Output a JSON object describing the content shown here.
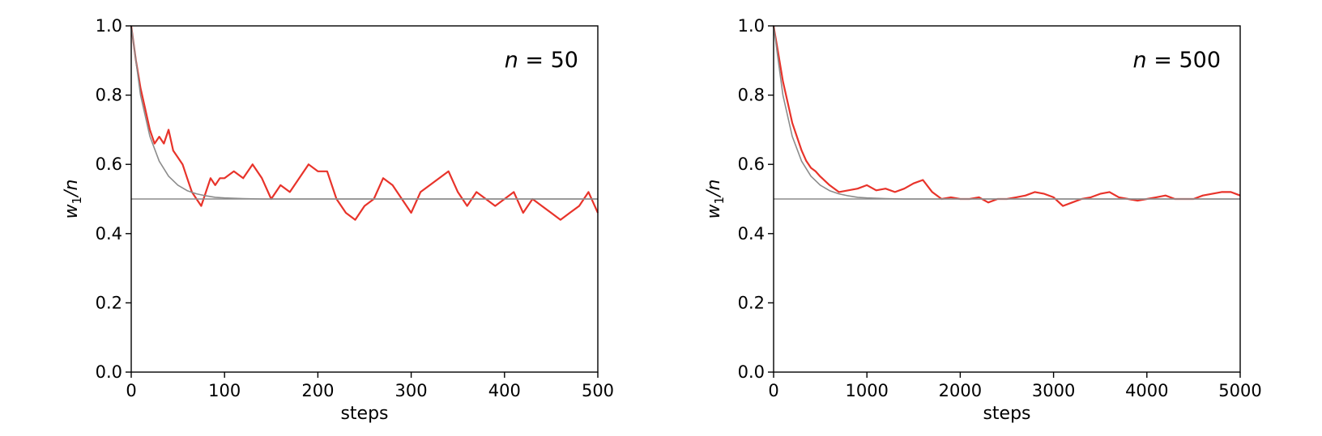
{
  "chart_data": [
    {
      "type": "line",
      "annotation_var": "n",
      "annotation_eq": " = 50",
      "xlabel": "steps",
      "ylabel_main": "w",
      "ylabel_sub": "1",
      "ylabel_rest": "/n",
      "xlim": [
        0,
        500
      ],
      "ylim": [
        0.0,
        1.0
      ],
      "xticks": [
        0,
        100,
        200,
        300,
        400,
        500
      ],
      "yticks": [
        0.0,
        0.2,
        0.4,
        0.6,
        0.8,
        1.0
      ],
      "xtick_labels": [
        "0",
        "100",
        "200",
        "300",
        "400",
        "500"
      ],
      "ytick_labels": [
        "0.0",
        "0.2",
        "0.4",
        "0.6",
        "0.8",
        "1.0"
      ],
      "grid": false,
      "colors": {
        "simulation": "#e8332a",
        "theory": "#8c8c8c",
        "reference": "#8c8c8c"
      },
      "series": [
        {
          "style": "simulation",
          "x": [
            0,
            5,
            10,
            15,
            20,
            25,
            30,
            35,
            40,
            45,
            50,
            55,
            60,
            65,
            70,
            75,
            80,
            85,
            90,
            95,
            100,
            110,
            120,
            130,
            140,
            150,
            160,
            170,
            180,
            190,
            200,
            210,
            220,
            230,
            240,
            250,
            260,
            270,
            280,
            290,
            300,
            310,
            320,
            330,
            340,
            350,
            360,
            370,
            380,
            390,
            400,
            410,
            420,
            430,
            440,
            450,
            460,
            470,
            480,
            490,
            500
          ],
          "y": [
            1.0,
            0.9,
            0.82,
            0.76,
            0.7,
            0.66,
            0.68,
            0.66,
            0.7,
            0.64,
            0.62,
            0.6,
            0.56,
            0.52,
            0.5,
            0.48,
            0.52,
            0.56,
            0.54,
            0.56,
            0.56,
            0.58,
            0.56,
            0.6,
            0.56,
            0.5,
            0.54,
            0.52,
            0.56,
            0.6,
            0.58,
            0.58,
            0.5,
            0.46,
            0.44,
            0.48,
            0.5,
            0.56,
            0.54,
            0.5,
            0.46,
            0.52,
            0.54,
            0.56,
            0.58,
            0.52,
            0.48,
            0.52,
            0.5,
            0.48,
            0.5,
            0.52,
            0.46,
            0.5,
            0.48,
            0.46,
            0.44,
            0.46,
            0.48,
            0.52,
            0.46
          ]
        },
        {
          "style": "theory",
          "x": [
            0,
            10,
            20,
            30,
            40,
            50,
            60,
            70,
            80,
            90,
            100,
            120,
            140,
            160,
            180,
            200,
            250,
            300,
            350,
            400,
            450,
            500
          ],
          "y": [
            1.0,
            0.8,
            0.681,
            0.609,
            0.566,
            0.54,
            0.524,
            0.515,
            0.509,
            0.505,
            0.503,
            0.501,
            0.5,
            0.5,
            0.5,
            0.5,
            0.5,
            0.5,
            0.5,
            0.5,
            0.5,
            0.5
          ]
        },
        {
          "style": "reference",
          "x": [
            0,
            500
          ],
          "y": [
            0.5,
            0.5
          ]
        }
      ]
    },
    {
      "type": "line",
      "annotation_var": "n",
      "annotation_eq": " = 500",
      "xlabel": "steps",
      "ylabel_main": "w",
      "ylabel_sub": "1",
      "ylabel_rest": "/n",
      "xlim": [
        0,
        5000
      ],
      "ylim": [
        0.0,
        1.0
      ],
      "xticks": [
        0,
        1000,
        2000,
        3000,
        4000,
        5000
      ],
      "yticks": [
        0.0,
        0.2,
        0.4,
        0.6,
        0.8,
        1.0
      ],
      "xtick_labels": [
        "0",
        "1000",
        "2000",
        "3000",
        "4000",
        "5000"
      ],
      "ytick_labels": [
        "0.0",
        "0.2",
        "0.4",
        "0.6",
        "0.8",
        "1.0"
      ],
      "grid": false,
      "colors": {
        "simulation": "#e8332a",
        "theory": "#8c8c8c",
        "reference": "#8c8c8c"
      },
      "series": [
        {
          "style": "simulation",
          "x": [
            0,
            50,
            100,
            150,
            200,
            250,
            300,
            350,
            400,
            450,
            500,
            600,
            700,
            800,
            900,
            1000,
            1100,
            1200,
            1300,
            1400,
            1500,
            1600,
            1700,
            1800,
            1900,
            2000,
            2100,
            2200,
            2300,
            2400,
            2500,
            2600,
            2700,
            2800,
            2900,
            3000,
            3100,
            3200,
            3300,
            3400,
            3500,
            3600,
            3700,
            3800,
            3900,
            4000,
            4100,
            4200,
            4300,
            4400,
            4500,
            4600,
            4700,
            4800,
            4900,
            5000
          ],
          "y": [
            1.0,
            0.92,
            0.84,
            0.78,
            0.72,
            0.68,
            0.64,
            0.61,
            0.59,
            0.58,
            0.565,
            0.54,
            0.52,
            0.525,
            0.53,
            0.54,
            0.525,
            0.53,
            0.52,
            0.53,
            0.545,
            0.555,
            0.52,
            0.5,
            0.505,
            0.5,
            0.5,
            0.505,
            0.49,
            0.5,
            0.5,
            0.505,
            0.51,
            0.52,
            0.515,
            0.505,
            0.48,
            0.49,
            0.5,
            0.505,
            0.515,
            0.52,
            0.505,
            0.5,
            0.495,
            0.5,
            0.505,
            0.51,
            0.5,
            0.5,
            0.5,
            0.51,
            0.515,
            0.52,
            0.52,
            0.51
          ]
        },
        {
          "style": "theory",
          "x": [
            0,
            100,
            200,
            300,
            400,
            500,
            600,
            700,
            800,
            900,
            1000,
            1200,
            1400,
            1600,
            1800,
            2000,
            2500,
            3000,
            3500,
            4000,
            4500,
            5000
          ],
          "y": [
            1.0,
            0.8,
            0.681,
            0.609,
            0.566,
            0.54,
            0.524,
            0.515,
            0.509,
            0.505,
            0.503,
            0.501,
            0.5,
            0.5,
            0.5,
            0.5,
            0.5,
            0.5,
            0.5,
            0.5,
            0.5,
            0.5
          ]
        },
        {
          "style": "reference",
          "x": [
            0,
            5000
          ],
          "y": [
            0.5,
            0.5
          ]
        }
      ]
    }
  ]
}
